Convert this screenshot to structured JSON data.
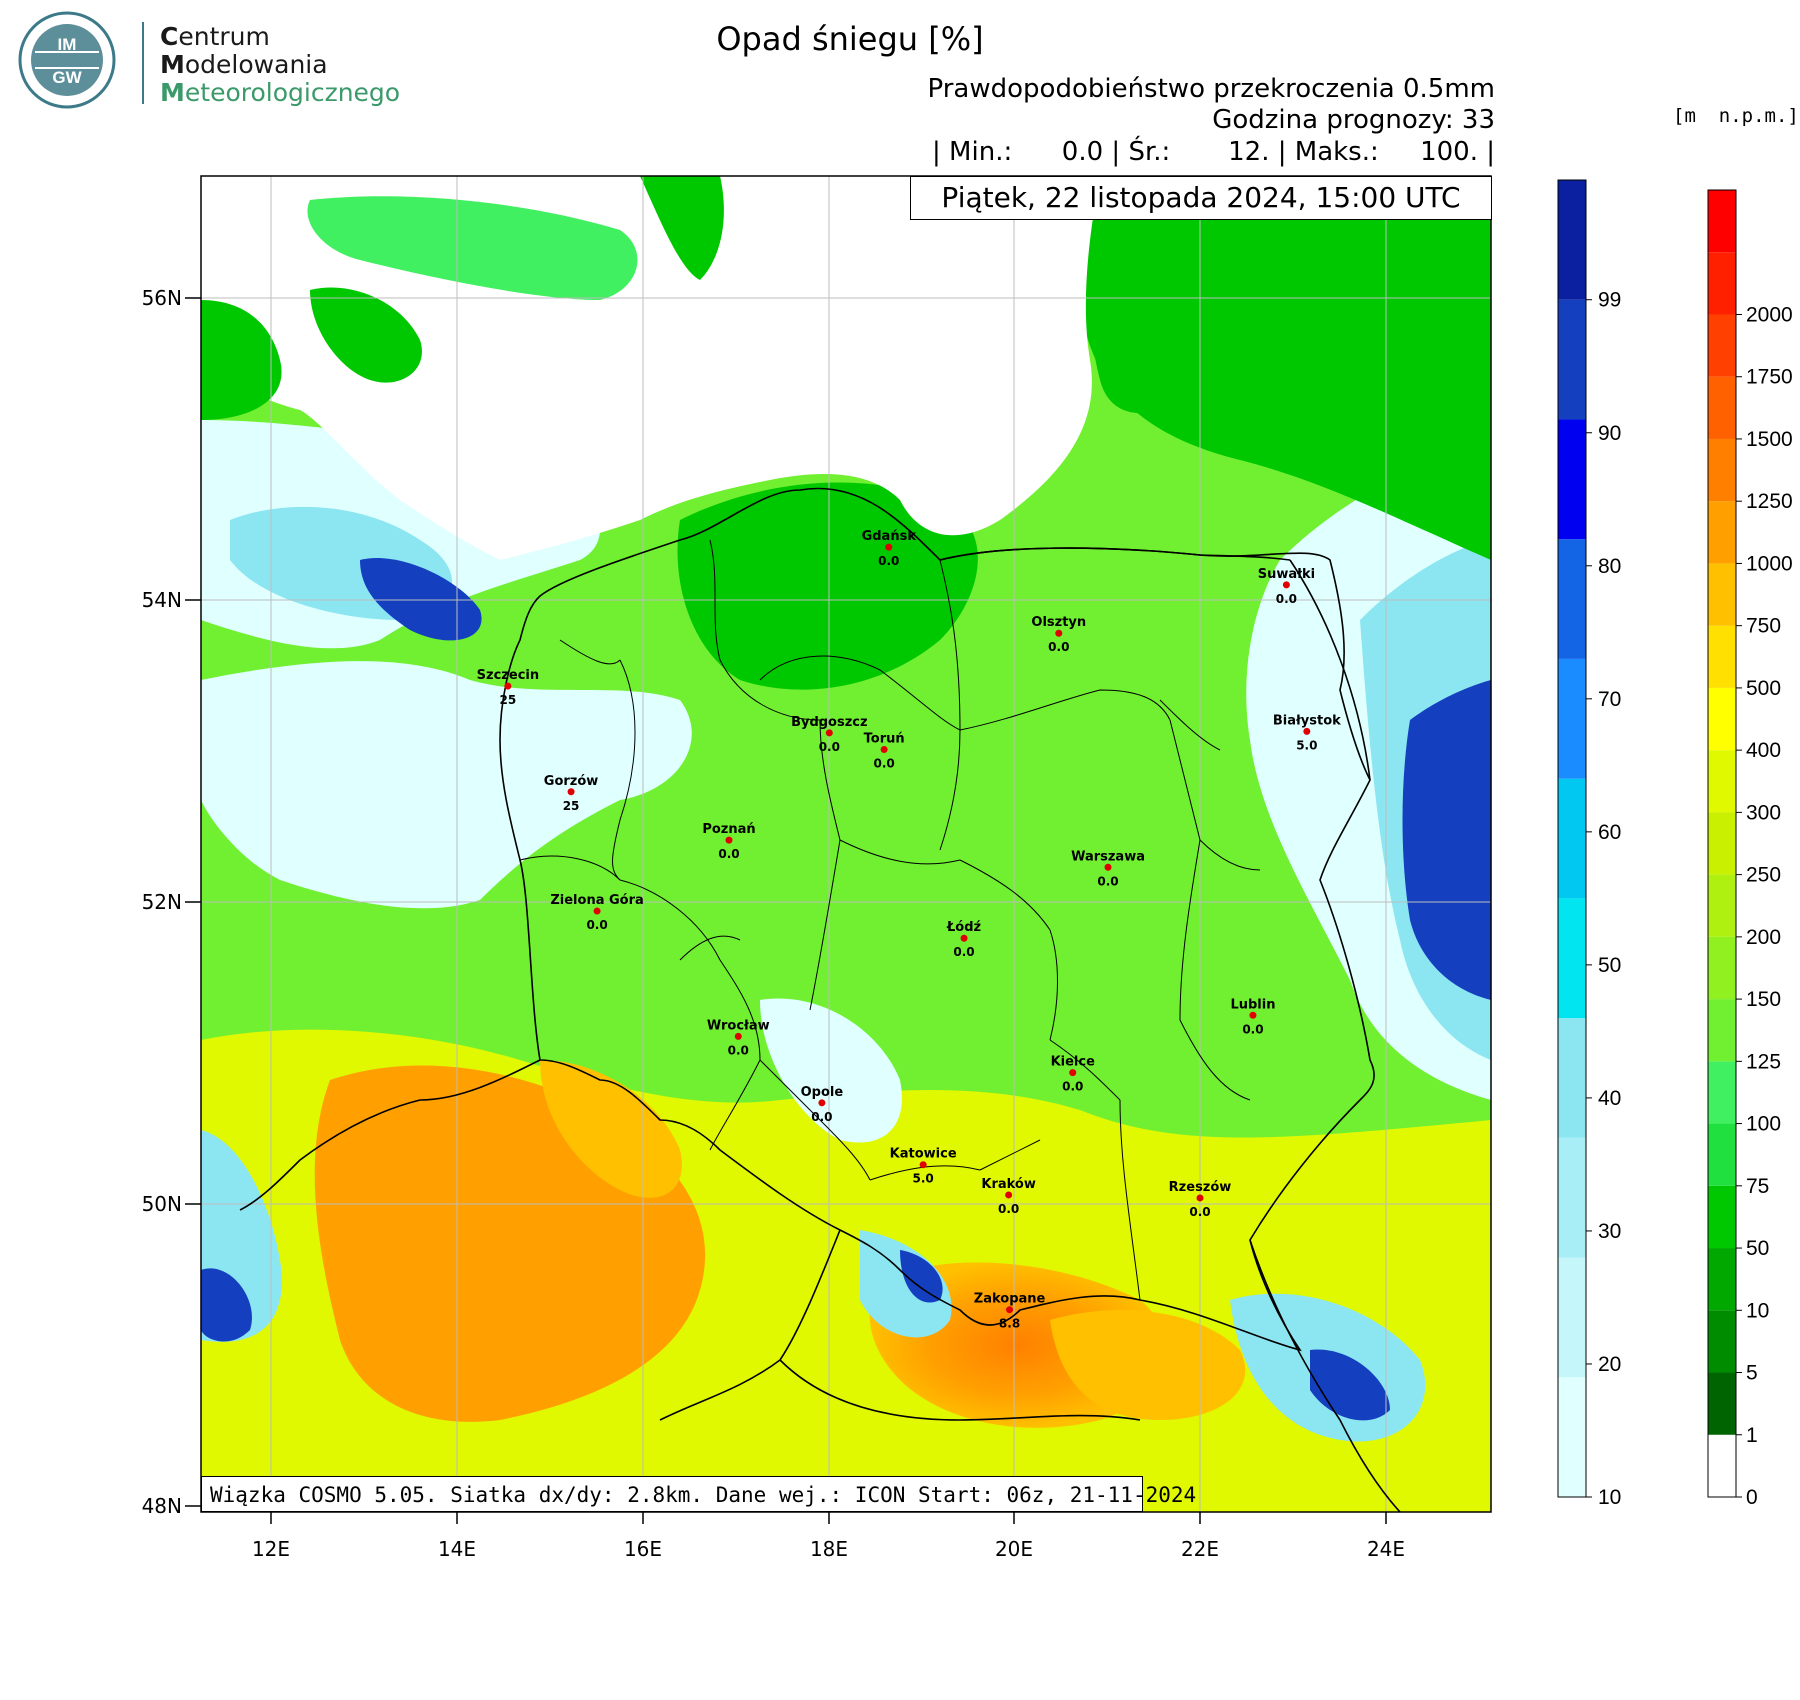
{
  "header": {
    "logo_mark": "IMGW",
    "logo_lines": [
      {
        "cap": "C",
        "rest": "entrum"
      },
      {
        "cap": "M",
        "rest": "odelowania"
      },
      {
        "cap": "M",
        "rest": "eteorologicznego"
      }
    ],
    "title": "Opad śniegu [%]",
    "subtitle": "Prawdopodobieństwo przekroczenia 0.5mm",
    "forecast_hour": "Godzina prognozy: 33",
    "stats": "| Min.:      0.0 | Śr.:       12. | Maks.:     100. |",
    "date": "Piątek, 22 listopada 2024, 15:00 UTC",
    "elev_unit": "[m  n.p.m.]"
  },
  "footer": {
    "info": "Wiązka COSMO 5.05. Siatka dx/dy: 2.8km. Dane wej.: ICON Start: 06z, 21-11-2024"
  },
  "axes": {
    "lat_labels": [
      "56N",
      "54N",
      "52N",
      "50N",
      "48N"
    ],
    "lon_labels": [
      "12E",
      "14E",
      "16E",
      "18E",
      "20E",
      "22E",
      "24E"
    ]
  },
  "colorbar_snow": {
    "labels": [
      "10",
      "20",
      "30",
      "40",
      "50",
      "60",
      "70",
      "80",
      "90",
      "99"
    ],
    "colors": [
      "#e0ffff",
      "#c4f6fa",
      "#a8eef6",
      "#8ce6f2",
      "#00e5f0",
      "#00c8f0",
      "#1a8cff",
      "#1464e6",
      "#0000f0",
      "#1440c0",
      "#0a20a0"
    ]
  },
  "colorbar_elev": {
    "labels": [
      "0",
      "1",
      "5",
      "10",
      "50",
      "75",
      "100",
      "125",
      "150",
      "200",
      "250",
      "300",
      "400",
      "500",
      "750",
      "1000",
      "1250",
      "1500",
      "1750",
      "2000"
    ],
    "colors": [
      "#ffffff",
      "#006400",
      "#008c00",
      "#00a800",
      "#00c800",
      "#20e040",
      "#40f060",
      "#70f030",
      "#90f020",
      "#b0f010",
      "#c8f000",
      "#e0f800",
      "#ffff00",
      "#ffe000",
      "#ffc000",
      "#ffa000",
      "#ff8000",
      "#ff6000",
      "#ff4000",
      "#ff2000",
      "#ff0000"
    ]
  },
  "cities": [
    {
      "name": "Gdańsk",
      "value": "0.0",
      "lon": 18.65,
      "lat": 54.35
    },
    {
      "name": "Suwałki",
      "value": "0.0",
      "lon": 22.93,
      "lat": 54.1
    },
    {
      "name": "Olsztyn",
      "value": "0.0",
      "lon": 20.48,
      "lat": 53.78
    },
    {
      "name": "Szczecin",
      "value": "25",
      "lon": 14.55,
      "lat": 53.43
    },
    {
      "name": "Białystok",
      "value": "5.0",
      "lon": 23.15,
      "lat": 53.13
    },
    {
      "name": "Bydgoszcz",
      "value": "0.0",
      "lon": 18.01,
      "lat": 53.12
    },
    {
      "name": "Toruń",
      "value": "0.0",
      "lon": 18.6,
      "lat": 53.01
    },
    {
      "name": "Gorzów",
      "value": "25",
      "lon": 15.23,
      "lat": 52.73
    },
    {
      "name": "Poznań",
      "value": "0.0",
      "lon": 16.93,
      "lat": 52.41
    },
    {
      "name": "Warszawa",
      "value": "0.0",
      "lon": 21.01,
      "lat": 52.23
    },
    {
      "name": "Zielona Góra",
      "value": "0.0",
      "lon": 15.51,
      "lat": 51.94
    },
    {
      "name": "Łódź",
      "value": "0.0",
      "lon": 19.46,
      "lat": 51.76
    },
    {
      "name": "Lublin",
      "value": "0.0",
      "lon": 22.57,
      "lat": 51.25
    },
    {
      "name": "Wrocław",
      "value": "0.0",
      "lon": 17.03,
      "lat": 51.11
    },
    {
      "name": "Kielce",
      "value": "0.0",
      "lon": 20.63,
      "lat": 50.87
    },
    {
      "name": "Opole",
      "value": "0.0",
      "lon": 17.93,
      "lat": 50.67
    },
    {
      "name": "Katowice",
      "value": "5.0",
      "lon": 19.02,
      "lat": 50.26
    },
    {
      "name": "Kraków",
      "value": "0.0",
      "lon": 19.94,
      "lat": 50.06
    },
    {
      "name": "Rzeszów",
      "value": "0.0",
      "lon": 22.0,
      "lat": 50.04
    },
    {
      "name": "Zakopane",
      "value": "8.8",
      "lon": 19.95,
      "lat": 49.3
    }
  ],
  "colors": {
    "sea": "#ffffff",
    "lowland": "#00c800",
    "plain": "#70f030",
    "snow_light": "#e0ffff",
    "snow_mid": "#8ce6f2",
    "snow_high": "#1440c0",
    "mountain": "#ffa000",
    "upland": "#e0f800",
    "city_dot": "#e00000"
  }
}
